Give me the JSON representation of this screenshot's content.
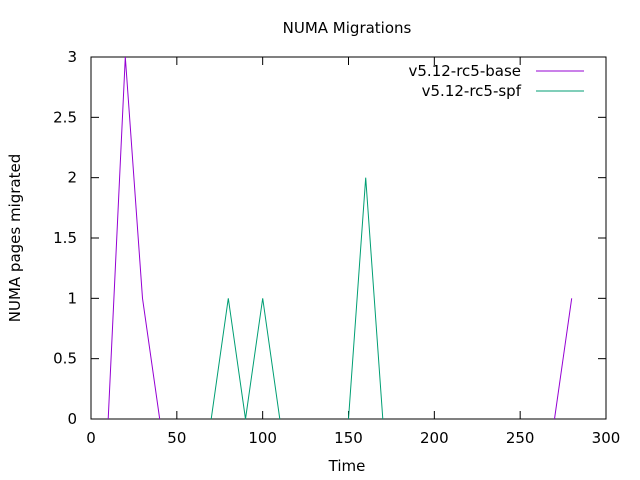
{
  "chart_data": {
    "type": "line",
    "title": "NUMA Migrations",
    "xlabel": "Time",
    "ylabel": "NUMA pages migrated",
    "xlim": [
      0,
      300
    ],
    "ylim": [
      0,
      3
    ],
    "xticks": [
      0,
      50,
      100,
      150,
      200,
      250,
      300
    ],
    "yticks": [
      0,
      0.5,
      1,
      1.5,
      2,
      2.5,
      3
    ],
    "xtick_labels": [
      "0",
      "50",
      "100",
      "150",
      "200",
      "250",
      "300"
    ],
    "ytick_labels": [
      "0",
      "0.5",
      "1",
      "1.5",
      "2",
      "2.5",
      "3"
    ],
    "grid": false,
    "legend_position": "top-right",
    "series": [
      {
        "name": "v5.12-rc5-base",
        "color": "#9400d3",
        "segments": [
          [
            [
              10,
              0
            ],
            [
              20,
              3
            ],
            [
              30,
              1
            ],
            [
              40,
              0
            ]
          ],
          [
            [
              270,
              0
            ],
            [
              280,
              1
            ]
          ]
        ]
      },
      {
        "name": "v5.12-rc5-spf",
        "color": "#009e73",
        "segments": [
          [
            [
              70,
              0
            ],
            [
              80,
              1
            ],
            [
              90,
              0
            ],
            [
              100,
              1
            ],
            [
              110,
              0
            ]
          ],
          [
            [
              150,
              0
            ],
            [
              160,
              2
            ],
            [
              170,
              0
            ]
          ]
        ]
      }
    ]
  }
}
